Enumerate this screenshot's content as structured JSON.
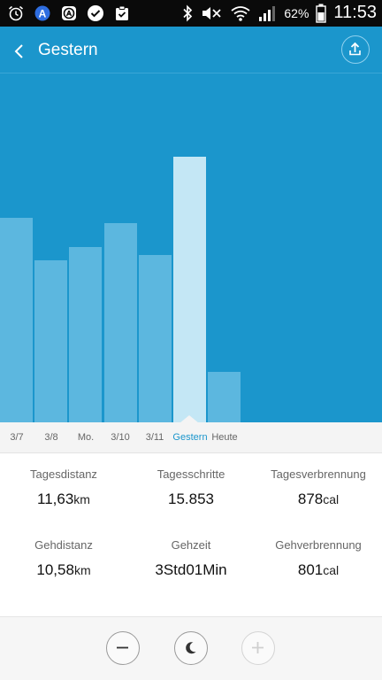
{
  "status_bar": {
    "battery_percent": "62%",
    "time": "11:53",
    "left_icons": [
      "alarm-icon",
      "a-app-icon",
      "a-app-outline-icon",
      "check-icon",
      "clipboard-check-icon"
    ],
    "right_icons": [
      "bluetooth-icon",
      "mute-icon",
      "wifi-icon",
      "signal-icon",
      "battery-icon"
    ]
  },
  "header": {
    "title": "Gestern",
    "back_icon": "chevron-left-icon",
    "share_icon": "upload-icon"
  },
  "chart_data": {
    "type": "bar",
    "categories": [
      "3/7",
      "3/8",
      "Mo.",
      "3/10",
      "3/11",
      "Gestern",
      "Heute"
    ],
    "values": [
      0.77,
      0.61,
      0.66,
      0.75,
      0.63,
      1.0,
      0.19
    ],
    "selected": "Gestern",
    "colors": {
      "background": "#1b96cc",
      "bar": "#5cb7df",
      "selected_bar": "#c4e7f5",
      "selected_label": "#1b96cc"
    }
  },
  "stats": [
    {
      "label": "Tagesdistanz",
      "value": "11,63",
      "unit": "km"
    },
    {
      "label": "Tagesschritte",
      "value": "15.853",
      "unit": ""
    },
    {
      "label": "Tagesverbrennung",
      "value": "878",
      "unit": "cal"
    },
    {
      "label": "Gehdistanz",
      "value": "10,58",
      "unit": "km"
    },
    {
      "label": "Gehzeit",
      "value": "3Std01Min",
      "unit": ""
    },
    {
      "label": "Gehverbrennung",
      "value": "801",
      "unit": "cal"
    }
  ],
  "bottom_bar": {
    "buttons": [
      "minus-icon",
      "moon-icon",
      "plus-icon"
    ]
  }
}
